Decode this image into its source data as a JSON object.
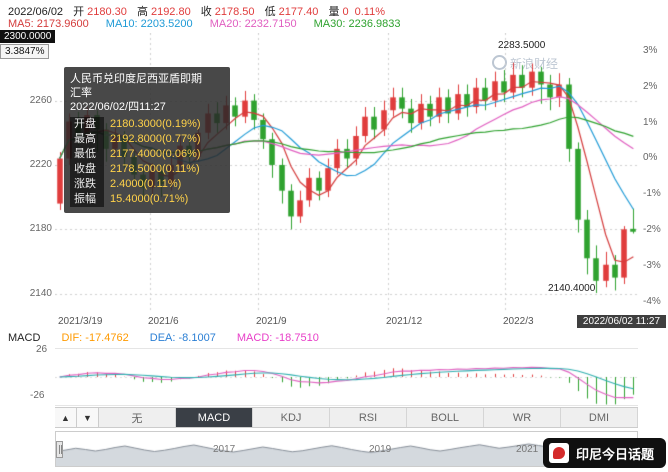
{
  "header": {
    "date": "2022/06/02",
    "fields": [
      {
        "label": "开",
        "value": "2180.30"
      },
      {
        "label": "高",
        "value": "2192.80"
      },
      {
        "label": "收",
        "value": "2178.50"
      },
      {
        "label": "低",
        "value": "2177.40"
      },
      {
        "label": "量",
        "value": "0"
      }
    ],
    "change_pct": "0.11%"
  },
  "ma_bar": [
    {
      "label": "MA5: 2173.9600",
      "color": "#d43c3c"
    },
    {
      "label": "MA10: 2203.5200",
      "color": "#1e9ad6"
    },
    {
      "label": "MA20: 2232.7150",
      "color": "#e05ec0"
    },
    {
      "label": "MA30: 2236.9833",
      "color": "#2fa22f"
    }
  ],
  "crosshair": {
    "price": "2300.0000",
    "pct": "3.3847%"
  },
  "watermark": "新浪财经",
  "tooltip": {
    "title_line1": "人民币兑印度尼西亚盾即期",
    "title_line2": "汇率",
    "datetime": "2022/06/02/四11:27",
    "rows": [
      {
        "label": "开盘",
        "value": "2180.3000(0.19%)"
      },
      {
        "label": "最高",
        "value": "2192.8000(0.77%)"
      },
      {
        "label": "最低",
        "value": "2177.4000(0.06%)"
      },
      {
        "label": "收盘",
        "value": "2178.5000(0.11%)"
      },
      {
        "label": "涨跌",
        "value": "2.4000(0.11%)"
      },
      {
        "label": "振幅",
        "value": "15.4000(0.71%)"
      }
    ]
  },
  "annotations": {
    "high": "2283.5000",
    "low": "2140.4000"
  },
  "y_axis_left": [
    "2260",
    "2220",
    "2180",
    "2140"
  ],
  "y_axis_right": {
    "base": 2224.7,
    "percents": [
      3,
      2,
      1,
      0,
      -1,
      -2,
      -3,
      -4
    ],
    "labels": [
      "3%",
      "2%",
      "1%",
      "0%",
      "-1%",
      "-2%",
      "-3%",
      "-4%"
    ]
  },
  "x_axis": {
    "labels": [
      "2021/3/19",
      "2021/6",
      "2021/9",
      "2021/12",
      "2022/3"
    ],
    "current": "2022/06/02 11:27"
  },
  "macd_panel": {
    "title": "MACD",
    "dif": {
      "label": "DIF: -17.4762",
      "color": "#ff9a00"
    },
    "dea": {
      "label": "DEA: -8.1007",
      "color": "#2b7fd4"
    },
    "macd": {
      "label": "MACD: -18.7510",
      "color": "#e83ec8"
    },
    "y_max": "26",
    "y_min": "-26"
  },
  "tabs": {
    "up": "▲",
    "down": "▼",
    "items": [
      "无",
      "MACD",
      "KDJ",
      "RSI",
      "BOLL",
      "WR",
      "DMI"
    ],
    "active": "MACD"
  },
  "navigator": {
    "years": [
      "2017",
      "2019",
      "2021"
    ],
    "values": [
      0.42,
      0.48,
      0.55,
      0.5,
      0.44,
      0.5,
      0.58,
      0.64,
      0.56,
      0.48,
      0.42,
      0.47,
      0.54,
      0.62,
      0.68,
      0.6,
      0.52,
      0.45,
      0.4,
      0.46,
      0.53,
      0.6,
      0.54,
      0.47,
      0.41,
      0.45,
      0.52,
      0.59,
      0.65,
      0.58,
      0.5,
      0.43,
      0.38,
      0.44,
      0.51,
      0.58,
      0.64,
      0.57,
      0.49,
      0.44,
      0.5,
      0.57,
      0.63,
      0.69,
      0.62,
      0.55,
      0.6,
      0.66,
      0.72,
      0.66,
      0.6,
      0.66,
      0.73,
      0.79,
      0.72,
      0.66,
      0.73,
      0.8,
      0.7,
      0.55
    ]
  },
  "badge": {
    "text": "印尼今日话题"
  },
  "chart_data": {
    "type": "candlestick",
    "title": "人民币兑印度尼西亚盾即期汇率",
    "start_label": "2021/3/19",
    "end_label": "2022/06/02 11:27",
    "ylim": [
      2128,
      2302
    ],
    "gridlines": [
      2260,
      2220,
      2180,
      2140
    ],
    "up_color": "#e03c3c",
    "down_color": "#2fa22f",
    "grid_color": "#cfcfcf",
    "dif_line": "#e060c0",
    "dea_line": "#30b0b0",
    "ma": [
      {
        "window": 5,
        "color": "#d43c3c"
      },
      {
        "window": 10,
        "color": "#1e9ad6"
      },
      {
        "window": 20,
        "color": "#e05ec0"
      },
      {
        "window": 30,
        "color": "#2fa22f"
      }
    ],
    "candles": [
      [
        2196,
        2228,
        2192,
        2224
      ],
      [
        2224,
        2252,
        2220,
        2247
      ],
      [
        2247,
        2253,
        2232,
        2238
      ],
      [
        2238,
        2256,
        2234,
        2251
      ],
      [
        2251,
        2254,
        2228,
        2242
      ],
      [
        2242,
        2246,
        2222,
        2230
      ],
      [
        2230,
        2243,
        2224,
        2238
      ],
      [
        2238,
        2241,
        2218,
        2225
      ],
      [
        2225,
        2229,
        2208,
        2214
      ],
      [
        2214,
        2218,
        2198,
        2206
      ],
      [
        2206,
        2221,
        2202,
        2216
      ],
      [
        2216,
        2220,
        2200,
        2208
      ],
      [
        2208,
        2226,
        2204,
        2220
      ],
      [
        2220,
        2238,
        2216,
        2232
      ],
      [
        2232,
        2237,
        2219,
        2225
      ],
      [
        2225,
        2246,
        2222,
        2240
      ],
      [
        2240,
        2258,
        2236,
        2252
      ],
      [
        2252,
        2259,
        2240,
        2246
      ],
      [
        2246,
        2263,
        2242,
        2257
      ],
      [
        2257,
        2262,
        2244,
        2250
      ],
      [
        2250,
        2266,
        2246,
        2260
      ],
      [
        2260,
        2264,
        2242,
        2248
      ],
      [
        2248,
        2252,
        2230,
        2236
      ],
      [
        2236,
        2240,
        2212,
        2220
      ],
      [
        2220,
        2224,
        2196,
        2204
      ],
      [
        2204,
        2208,
        2180,
        2188
      ],
      [
        2188,
        2204,
        2184,
        2198
      ],
      [
        2198,
        2218,
        2194,
        2212
      ],
      [
        2212,
        2216,
        2198,
        2204
      ],
      [
        2204,
        2224,
        2200,
        2218
      ],
      [
        2218,
        2236,
        2214,
        2230
      ],
      [
        2230,
        2236,
        2218,
        2224
      ],
      [
        2224,
        2244,
        2220,
        2238
      ],
      [
        2238,
        2256,
        2234,
        2250
      ],
      [
        2250,
        2256,
        2236,
        2242
      ],
      [
        2242,
        2260,
        2238,
        2254
      ],
      [
        2254,
        2268,
        2250,
        2262
      ],
      [
        2262,
        2268,
        2249,
        2255
      ],
      [
        2255,
        2261,
        2240,
        2246
      ],
      [
        2246,
        2264,
        2242,
        2258
      ],
      [
        2258,
        2263,
        2244,
        2250
      ],
      [
        2250,
        2268,
        2246,
        2262
      ],
      [
        2262,
        2267,
        2246,
        2252
      ],
      [
        2252,
        2270,
        2248,
        2264
      ],
      [
        2264,
        2270,
        2250,
        2256
      ],
      [
        2256,
        2274,
        2252,
        2268
      ],
      [
        2268,
        2274,
        2254,
        2260
      ],
      [
        2260,
        2278,
        2256,
        2272
      ],
      [
        2272,
        2279,
        2259,
        2265
      ],
      [
        2265,
        2283.5,
        2261,
        2276
      ],
      [
        2276,
        2282,
        2262,
        2268
      ],
      [
        2268,
        2283,
        2263,
        2278
      ],
      [
        2278,
        2281,
        2258,
        2270
      ],
      [
        2270,
        2276,
        2254,
        2262
      ],
      [
        2262,
        2277,
        2256,
        2270
      ],
      [
        2270,
        2274,
        2222,
        2230
      ],
      [
        2230,
        2234,
        2178,
        2186
      ],
      [
        2186,
        2192,
        2152,
        2162
      ],
      [
        2162,
        2170,
        2140.4,
        2148
      ],
      [
        2148,
        2166,
        2144,
        2158
      ],
      [
        2158,
        2164,
        2142,
        2150
      ],
      [
        2150,
        2182,
        2146,
        2180
      ],
      [
        2180.3,
        2192.8,
        2177.4,
        2178.5
      ]
    ]
  }
}
